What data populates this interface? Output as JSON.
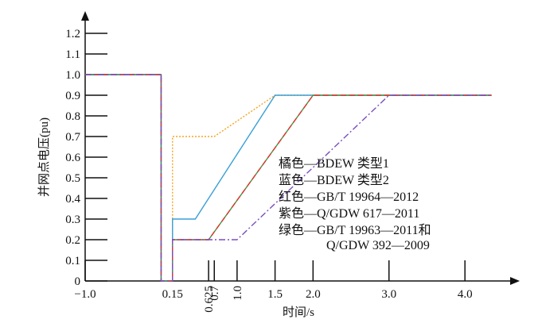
{
  "chart_data": {
    "type": "line",
    "xlabel": "时间/s",
    "ylabel": "并网点电压(pu)",
    "xlim": [
      -1,
      4.7
    ],
    "ylim": [
      0,
      1.3
    ],
    "xticks": [
      {
        "value": -1,
        "label": "−1.0"
      },
      0.15,
      0.625,
      0.7,
      {
        "value": 1,
        "label": "1.0"
      },
      1.5,
      {
        "value": 2,
        "label": "2.0"
      },
      {
        "value": 3,
        "label": "3.0"
      },
      {
        "value": 4,
        "label": "4.0"
      }
    ],
    "yticks": [
      0,
      0.1,
      0.2,
      0.3,
      0.4,
      0.5,
      0.6,
      0.7,
      0.8,
      0.9,
      {
        "value": 1,
        "label": "1.0"
      },
      1.1,
      1.2
    ],
    "series": [
      {
        "name": "橘色—BDEW 类型1",
        "color": "#f5a623",
        "dash": "2,2",
        "x": [
          -1,
          0,
          0,
          0.15,
          0.15,
          0.7,
          1.5,
          4.35
        ],
        "values": [
          1,
          1,
          0,
          0,
          0.7,
          0.7,
          0.9,
          0.9
        ]
      },
      {
        "name": "蓝色—BDEW 类型2",
        "color": "#3a9fd6",
        "dash": "none",
        "x": [
          -1,
          0,
          0,
          0.15,
          0.15,
          0.45,
          1.5,
          4.35
        ],
        "values": [
          1,
          1,
          0,
          0,
          0.3,
          0.3,
          0.9,
          0.9
        ]
      },
      {
        "name": "绿色—GB/T 19963—2011和\nQ/GDW 392—2009",
        "color": "#3a9a4a",
        "dash": "none",
        "x": [
          -1,
          0,
          0,
          0.15,
          0.15,
          0.625,
          2,
          4.35
        ],
        "values": [
          1,
          1,
          0,
          0,
          0.2,
          0.2,
          0.9,
          0.9
        ]
      },
      {
        "name": "红色—GB/T 19964—2012",
        "color": "#e5332a",
        "dash": "7,4",
        "x": [
          -1,
          0,
          0,
          0.15,
          0.15,
          0.625,
          2,
          4.35
        ],
        "values": [
          1,
          1,
          0,
          0,
          0.2,
          0.2,
          0.9,
          0.9
        ]
      },
      {
        "name": "紫色—Q/GDW 617—2011",
        "color": "#7a4fbf",
        "dash": "8,3,2,3",
        "x": [
          -1,
          0,
          0,
          0.15,
          0.15,
          1,
          3,
          4.35
        ],
        "values": [
          1,
          1,
          0,
          0,
          0.2,
          0.2,
          0.9,
          0.9
        ]
      }
    ]
  }
}
